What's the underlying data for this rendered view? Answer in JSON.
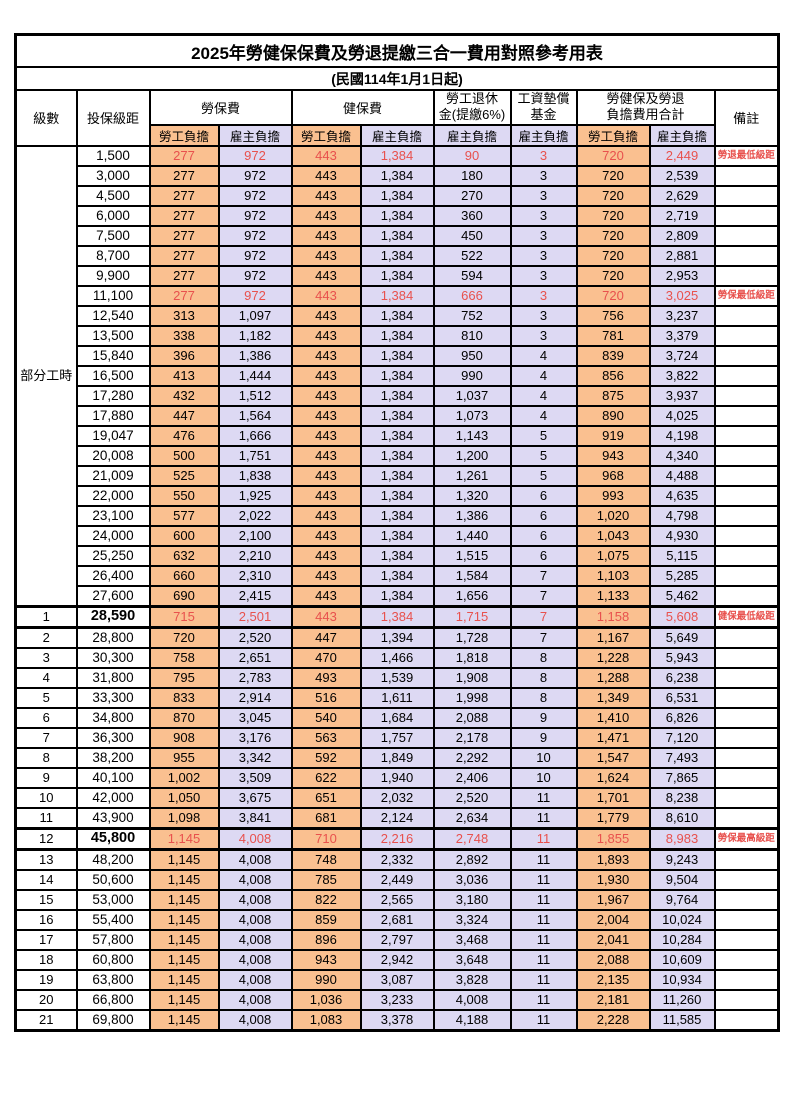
{
  "title": "2025年勞健保保費及勞退提繳三合一費用對照參考用表",
  "subtitle": "(民國114年1月1日起)",
  "colors": {
    "worker_bg": "#FAC090",
    "employer_bg": "#DDD9F3",
    "highlight_text": "#E8514D",
    "note_text": "#FF4545",
    "border": "#000000"
  },
  "header": {
    "level": "級數",
    "bracket": "投保級距",
    "labor": "勞保費",
    "health": "健保費",
    "pension_line1": "勞工退休",
    "pension_line2": "金(提繳6%)",
    "fund_line1": "工資墊償",
    "fund_line2": "基金",
    "total_line1": "勞健保及勞退",
    "total_line2": "負擔費用合計",
    "remark": "備註",
    "worker": "勞工負擔",
    "employer": "雇主負擔"
  },
  "table": {
    "rows": [
      {
        "lv": "部分工時",
        "span": 23,
        "br": "1,500",
        "lw": "277",
        "le": "972",
        "hw": "443",
        "he": "1,384",
        "pe": "90",
        "fu": "3",
        "tw": "720",
        "te": "2,449",
        "no": "勞退最低級距",
        "hl": true,
        "thick": false
      },
      {
        "lv": null,
        "br": "3,000",
        "lw": "277",
        "le": "972",
        "hw": "443",
        "he": "1,384",
        "pe": "180",
        "fu": "3",
        "tw": "720",
        "te": "2,539",
        "no": "",
        "hl": false,
        "thick": false
      },
      {
        "lv": null,
        "br": "4,500",
        "lw": "277",
        "le": "972",
        "hw": "443",
        "he": "1,384",
        "pe": "270",
        "fu": "3",
        "tw": "720",
        "te": "2,629",
        "no": "",
        "hl": false,
        "thick": false
      },
      {
        "lv": null,
        "br": "6,000",
        "lw": "277",
        "le": "972",
        "hw": "443",
        "he": "1,384",
        "pe": "360",
        "fu": "3",
        "tw": "720",
        "te": "2,719",
        "no": "",
        "hl": false,
        "thick": false
      },
      {
        "lv": null,
        "br": "7,500",
        "lw": "277",
        "le": "972",
        "hw": "443",
        "he": "1,384",
        "pe": "450",
        "fu": "3",
        "tw": "720",
        "te": "2,809",
        "no": "",
        "hl": false,
        "thick": false
      },
      {
        "lv": null,
        "br": "8,700",
        "lw": "277",
        "le": "972",
        "hw": "443",
        "he": "1,384",
        "pe": "522",
        "fu": "3",
        "tw": "720",
        "te": "2,881",
        "no": "",
        "hl": false,
        "thick": false
      },
      {
        "lv": null,
        "br": "9,900",
        "lw": "277",
        "le": "972",
        "hw": "443",
        "he": "1,384",
        "pe": "594",
        "fu": "3",
        "tw": "720",
        "te": "2,953",
        "no": "",
        "hl": false,
        "thick": false
      },
      {
        "lv": null,
        "br": "11,100",
        "lw": "277",
        "le": "972",
        "hw": "443",
        "he": "1,384",
        "pe": "666",
        "fu": "3",
        "tw": "720",
        "te": "3,025",
        "no": "勞保最低級距",
        "hl": true,
        "thick": false
      },
      {
        "lv": null,
        "br": "12,540",
        "lw": "313",
        "le": "1,097",
        "hw": "443",
        "he": "1,384",
        "pe": "752",
        "fu": "3",
        "tw": "756",
        "te": "3,237",
        "no": "",
        "hl": false,
        "thick": false
      },
      {
        "lv": null,
        "br": "13,500",
        "lw": "338",
        "le": "1,182",
        "hw": "443",
        "he": "1,384",
        "pe": "810",
        "fu": "3",
        "tw": "781",
        "te": "3,379",
        "no": "",
        "hl": false,
        "thick": false
      },
      {
        "lv": null,
        "br": "15,840",
        "lw": "396",
        "le": "1,386",
        "hw": "443",
        "he": "1,384",
        "pe": "950",
        "fu": "4",
        "tw": "839",
        "te": "3,724",
        "no": "",
        "hl": false,
        "thick": false
      },
      {
        "lv": null,
        "br": "16,500",
        "lw": "413",
        "le": "1,444",
        "hw": "443",
        "he": "1,384",
        "pe": "990",
        "fu": "4",
        "tw": "856",
        "te": "3,822",
        "no": "",
        "hl": false,
        "thick": false
      },
      {
        "lv": null,
        "br": "17,280",
        "lw": "432",
        "le": "1,512",
        "hw": "443",
        "he": "1,384",
        "pe": "1,037",
        "fu": "4",
        "tw": "875",
        "te": "3,937",
        "no": "",
        "hl": false,
        "thick": false
      },
      {
        "lv": null,
        "br": "17,880",
        "lw": "447",
        "le": "1,564",
        "hw": "443",
        "he": "1,384",
        "pe": "1,073",
        "fu": "4",
        "tw": "890",
        "te": "4,025",
        "no": "",
        "hl": false,
        "thick": false
      },
      {
        "lv": null,
        "br": "19,047",
        "lw": "476",
        "le": "1,666",
        "hw": "443",
        "he": "1,384",
        "pe": "1,143",
        "fu": "5",
        "tw": "919",
        "te": "4,198",
        "no": "",
        "hl": false,
        "thick": false
      },
      {
        "lv": null,
        "br": "20,008",
        "lw": "500",
        "le": "1,751",
        "hw": "443",
        "he": "1,384",
        "pe": "1,200",
        "fu": "5",
        "tw": "943",
        "te": "4,340",
        "no": "",
        "hl": false,
        "thick": false
      },
      {
        "lv": null,
        "br": "21,009",
        "lw": "525",
        "le": "1,838",
        "hw": "443",
        "he": "1,384",
        "pe": "1,261",
        "fu": "5",
        "tw": "968",
        "te": "4,488",
        "no": "",
        "hl": false,
        "thick": false
      },
      {
        "lv": null,
        "br": "22,000",
        "lw": "550",
        "le": "1,925",
        "hw": "443",
        "he": "1,384",
        "pe": "1,320",
        "fu": "6",
        "tw": "993",
        "te": "4,635",
        "no": "",
        "hl": false,
        "thick": false
      },
      {
        "lv": null,
        "br": "23,100",
        "lw": "577",
        "le": "2,022",
        "hw": "443",
        "he": "1,384",
        "pe": "1,386",
        "fu": "6",
        "tw": "1,020",
        "te": "4,798",
        "no": "",
        "hl": false,
        "thick": false
      },
      {
        "lv": null,
        "br": "24,000",
        "lw": "600",
        "le": "2,100",
        "hw": "443",
        "he": "1,384",
        "pe": "1,440",
        "fu": "6",
        "tw": "1,043",
        "te": "4,930",
        "no": "",
        "hl": false,
        "thick": false
      },
      {
        "lv": null,
        "br": "25,250",
        "lw": "632",
        "le": "2,210",
        "hw": "443",
        "he": "1,384",
        "pe": "1,515",
        "fu": "6",
        "tw": "1,075",
        "te": "5,115",
        "no": "",
        "hl": false,
        "thick": false
      },
      {
        "lv": null,
        "br": "26,400",
        "lw": "660",
        "le": "2,310",
        "hw": "443",
        "he": "1,384",
        "pe": "1,584",
        "fu": "7",
        "tw": "1,103",
        "te": "5,285",
        "no": "",
        "hl": false,
        "thick": false
      },
      {
        "lv": null,
        "br": "27,600",
        "lw": "690",
        "le": "2,415",
        "hw": "443",
        "he": "1,384",
        "pe": "1,656",
        "fu": "7",
        "tw": "1,133",
        "te": "5,462",
        "no": "",
        "hl": false,
        "thick": false
      },
      {
        "lv": "1",
        "br": "28,590",
        "lw": "715",
        "le": "2,501",
        "hw": "443",
        "he": "1,384",
        "pe": "1,715",
        "fu": "7",
        "tw": "1,158",
        "te": "5,608",
        "no": "健保最低級距",
        "hl": true,
        "thick": true
      },
      {
        "lv": "2",
        "br": "28,800",
        "lw": "720",
        "le": "2,520",
        "hw": "447",
        "he": "1,394",
        "pe": "1,728",
        "fu": "7",
        "tw": "1,167",
        "te": "5,649",
        "no": "",
        "hl": false,
        "thick": false
      },
      {
        "lv": "3",
        "br": "30,300",
        "lw": "758",
        "le": "2,651",
        "hw": "470",
        "he": "1,466",
        "pe": "1,818",
        "fu": "8",
        "tw": "1,228",
        "te": "5,943",
        "no": "",
        "hl": false,
        "thick": false
      },
      {
        "lv": "4",
        "br": "31,800",
        "lw": "795",
        "le": "2,783",
        "hw": "493",
        "he": "1,539",
        "pe": "1,908",
        "fu": "8",
        "tw": "1,288",
        "te": "6,238",
        "no": "",
        "hl": false,
        "thick": false
      },
      {
        "lv": "5",
        "br": "33,300",
        "lw": "833",
        "le": "2,914",
        "hw": "516",
        "he": "1,611",
        "pe": "1,998",
        "fu": "8",
        "tw": "1,349",
        "te": "6,531",
        "no": "",
        "hl": false,
        "thick": false
      },
      {
        "lv": "6",
        "br": "34,800",
        "lw": "870",
        "le": "3,045",
        "hw": "540",
        "he": "1,684",
        "pe": "2,088",
        "fu": "9",
        "tw": "1,410",
        "te": "6,826",
        "no": "",
        "hl": false,
        "thick": false
      },
      {
        "lv": "7",
        "br": "36,300",
        "lw": "908",
        "le": "3,176",
        "hw": "563",
        "he": "1,757",
        "pe": "2,178",
        "fu": "9",
        "tw": "1,471",
        "te": "7,120",
        "no": "",
        "hl": false,
        "thick": false
      },
      {
        "lv": "8",
        "br": "38,200",
        "lw": "955",
        "le": "3,342",
        "hw": "592",
        "he": "1,849",
        "pe": "2,292",
        "fu": "10",
        "tw": "1,547",
        "te": "7,493",
        "no": "",
        "hl": false,
        "thick": false
      },
      {
        "lv": "9",
        "br": "40,100",
        "lw": "1,002",
        "le": "3,509",
        "hw": "622",
        "he": "1,940",
        "pe": "2,406",
        "fu": "10",
        "tw": "1,624",
        "te": "7,865",
        "no": "",
        "hl": false,
        "thick": false
      },
      {
        "lv": "10",
        "br": "42,000",
        "lw": "1,050",
        "le": "3,675",
        "hw": "651",
        "he": "2,032",
        "pe": "2,520",
        "fu": "11",
        "tw": "1,701",
        "te": "8,238",
        "no": "",
        "hl": false,
        "thick": false
      },
      {
        "lv": "11",
        "br": "43,900",
        "lw": "1,098",
        "le": "3,841",
        "hw": "681",
        "he": "2,124",
        "pe": "2,634",
        "fu": "11",
        "tw": "1,779",
        "te": "8,610",
        "no": "",
        "hl": false,
        "thick": false
      },
      {
        "lv": "12",
        "br": "45,800",
        "lw": "1,145",
        "le": "4,008",
        "hw": "710",
        "he": "2,216",
        "pe": "2,748",
        "fu": "11",
        "tw": "1,855",
        "te": "8,983",
        "no": "勞保最高級距",
        "hl": true,
        "thick": true
      },
      {
        "lv": "13",
        "br": "48,200",
        "lw": "1,145",
        "le": "4,008",
        "hw": "748",
        "he": "2,332",
        "pe": "2,892",
        "fu": "11",
        "tw": "1,893",
        "te": "9,243",
        "no": "",
        "hl": false,
        "thick": false
      },
      {
        "lv": "14",
        "br": "50,600",
        "lw": "1,145",
        "le": "4,008",
        "hw": "785",
        "he": "2,449",
        "pe": "3,036",
        "fu": "11",
        "tw": "1,930",
        "te": "9,504",
        "no": "",
        "hl": false,
        "thick": false
      },
      {
        "lv": "15",
        "br": "53,000",
        "lw": "1,145",
        "le": "4,008",
        "hw": "822",
        "he": "2,565",
        "pe": "3,180",
        "fu": "11",
        "tw": "1,967",
        "te": "9,764",
        "no": "",
        "hl": false,
        "thick": false
      },
      {
        "lv": "16",
        "br": "55,400",
        "lw": "1,145",
        "le": "4,008",
        "hw": "859",
        "he": "2,681",
        "pe": "3,324",
        "fu": "11",
        "tw": "2,004",
        "te": "10,024",
        "no": "",
        "hl": false,
        "thick": false
      },
      {
        "lv": "17",
        "br": "57,800",
        "lw": "1,145",
        "le": "4,008",
        "hw": "896",
        "he": "2,797",
        "pe": "3,468",
        "fu": "11",
        "tw": "2,041",
        "te": "10,284",
        "no": "",
        "hl": false,
        "thick": false
      },
      {
        "lv": "18",
        "br": "60,800",
        "lw": "1,145",
        "le": "4,008",
        "hw": "943",
        "he": "2,942",
        "pe": "3,648",
        "fu": "11",
        "tw": "2,088",
        "te": "10,609",
        "no": "",
        "hl": false,
        "thick": false
      },
      {
        "lv": "19",
        "br": "63,800",
        "lw": "1,145",
        "le": "4,008",
        "hw": "990",
        "he": "3,087",
        "pe": "3,828",
        "fu": "11",
        "tw": "2,135",
        "te": "10,934",
        "no": "",
        "hl": false,
        "thick": false
      },
      {
        "lv": "20",
        "br": "66,800",
        "lw": "1,145",
        "le": "4,008",
        "hw": "1,036",
        "he": "3,233",
        "pe": "4,008",
        "fu": "11",
        "tw": "2,181",
        "te": "11,260",
        "no": "",
        "hl": false,
        "thick": false
      },
      {
        "lv": "21",
        "br": "69,800",
        "lw": "1,145",
        "le": "4,008",
        "hw": "1,083",
        "he": "3,378",
        "pe": "4,188",
        "fu": "11",
        "tw": "2,228",
        "te": "11,585",
        "no": "",
        "hl": false,
        "thick": false
      }
    ]
  }
}
